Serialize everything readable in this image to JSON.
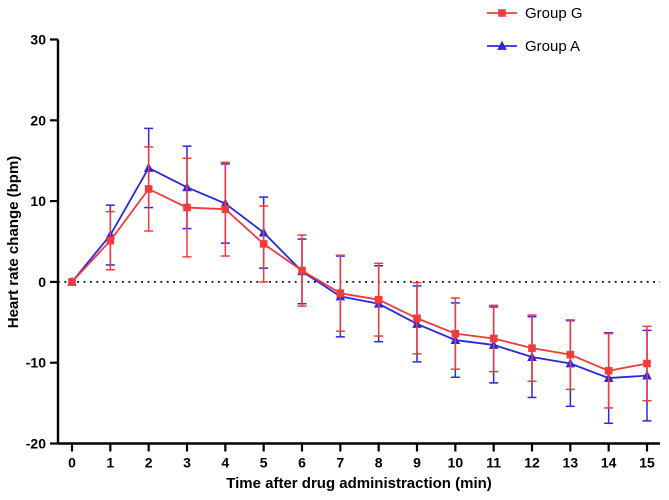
{
  "figure": {
    "background": "#ffffff",
    "axis_color": "#000000"
  },
  "legend": {
    "position": "top-right",
    "items": [
      {
        "label": "Group G",
        "marker": "square",
        "color": "#f23c3c"
      },
      {
        "label": "Group A",
        "marker": "triangle",
        "color": "#2b28e0"
      }
    ]
  },
  "chart_data": {
    "type": "line",
    "title": "",
    "xlabel": "Time after drug administraction (min)",
    "ylabel": "Heart rate change (bpm)",
    "x": [
      0,
      1,
      2,
      3,
      4,
      5,
      6,
      7,
      8,
      9,
      10,
      11,
      12,
      13,
      14,
      15
    ],
    "xticks": [
      0,
      1,
      2,
      3,
      4,
      5,
      6,
      7,
      8,
      9,
      10,
      11,
      12,
      13,
      14,
      15
    ],
    "yticks": [
      -20,
      -10,
      0,
      10,
      20,
      30
    ],
    "xlim": [
      0,
      15
    ],
    "ylim": [
      -20,
      30
    ],
    "grid": false,
    "reference_line_y": 0,
    "reference_line_style": "dotted",
    "error_bars": "sd",
    "series": [
      {
        "name": "Group G",
        "marker": "square",
        "color": "#f23c3c",
        "values": [
          0,
          5.1,
          11.5,
          9.2,
          9.0,
          4.7,
          1.4,
          -1.4,
          -2.2,
          -4.5,
          -6.4,
          -7.0,
          -8.2,
          -9.0,
          -11.0,
          -10.1
        ],
        "errors": [
          0,
          3.6,
          5.2,
          6.1,
          5.8,
          4.7,
          4.4,
          4.7,
          4.5,
          4.4,
          4.4,
          4.1,
          4.1,
          4.3,
          4.6,
          4.6
        ]
      },
      {
        "name": "Group A",
        "marker": "triangle",
        "color": "#2b28e0",
        "values": [
          0,
          5.8,
          14.1,
          11.7,
          9.7,
          6.1,
          1.3,
          -1.8,
          -2.7,
          -5.2,
          -7.2,
          -7.8,
          -9.3,
          -10.1,
          -11.9,
          -11.6
        ],
        "errors": [
          0,
          3.7,
          4.9,
          5.1,
          4.9,
          4.4,
          4.0,
          5.0,
          4.7,
          4.7,
          4.6,
          4.7,
          5.0,
          5.3,
          5.6,
          5.6
        ]
      }
    ]
  }
}
